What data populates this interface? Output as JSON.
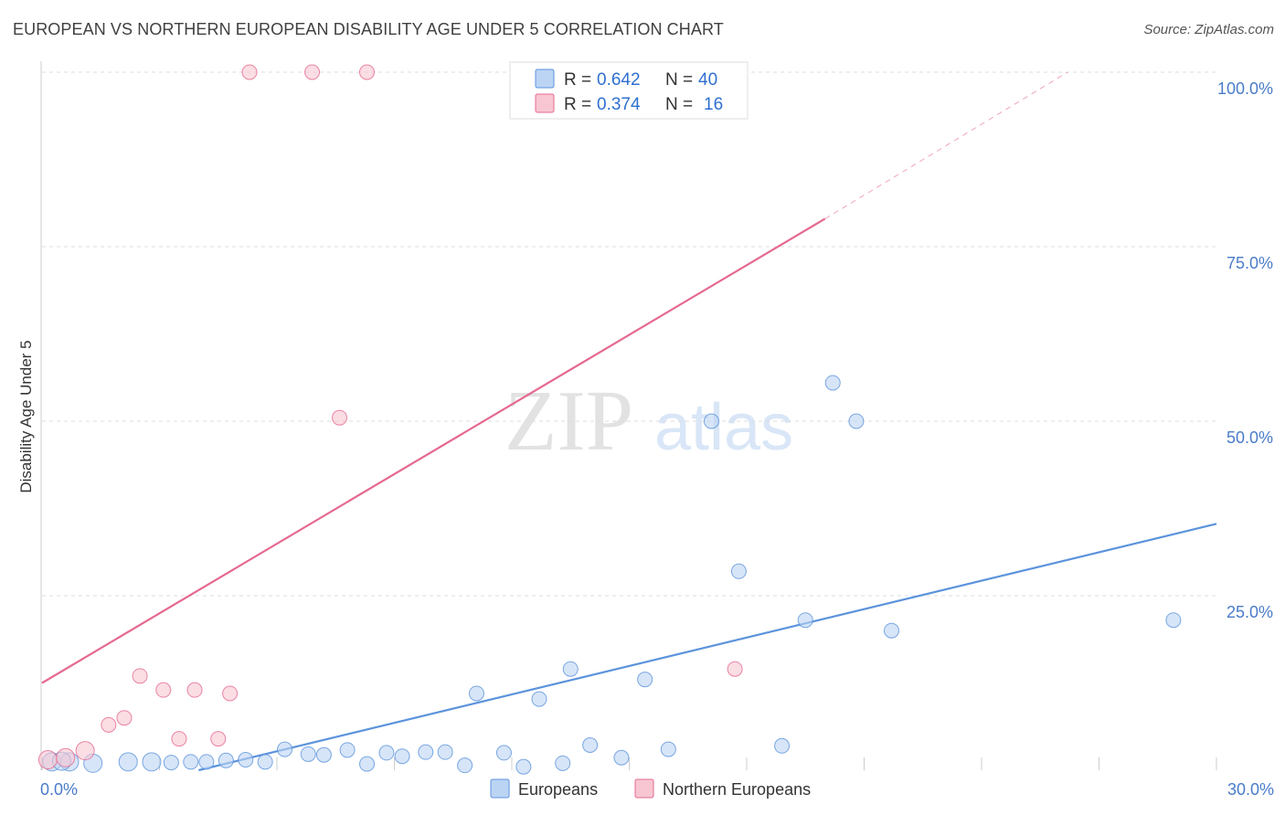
{
  "header": {
    "title": "EUROPEAN VS NORTHERN EUROPEAN DISABILITY AGE UNDER 5 CORRELATION CHART",
    "source": "Source: ZipAtlas.com"
  },
  "watermark": {
    "zip": "ZIP",
    "atlas": "atlas"
  },
  "legend": {
    "rows": [
      {
        "r_label": "R = ",
        "r_value": "0.642",
        "n_label": "N = ",
        "n_value": "40",
        "color": "#a9c8f0"
      },
      {
        "r_label": "R = ",
        "r_value": "0.374",
        "n_label": "N = ",
        "n_value": "16",
        "color": "#f8bccb"
      }
    ]
  },
  "chart_data": {
    "type": "scatter",
    "title": "EUROPEAN VS NORTHERN EUROPEAN DISABILITY AGE UNDER 5 CORRELATION CHART",
    "xlabel": "",
    "ylabel": "Disability Age Under 5",
    "xlim": [
      0,
      30
    ],
    "ylim": [
      0,
      100
    ],
    "x_tick_labels": [
      "0.0%",
      "30.0%"
    ],
    "y_ticks": [
      25,
      50,
      75,
      100
    ],
    "y_tick_labels": [
      "25.0%",
      "50.0%",
      "75.0%",
      "100.0%"
    ],
    "grid": true,
    "legend_position": "bottom",
    "series": [
      {
        "name": "Europeans",
        "color": "#5b93dc",
        "fill": "#bcd4f4",
        "r": 0.642,
        "n": 40,
        "points": [
          [
            0.25,
            1.2
          ],
          [
            0.7,
            1.2
          ],
          [
            1.3,
            1.0
          ],
          [
            2.2,
            1.2
          ],
          [
            2.8,
            1.2
          ],
          [
            3.3,
            1.1
          ],
          [
            3.8,
            1.2
          ],
          [
            4.2,
            1.2
          ],
          [
            4.7,
            1.4
          ],
          [
            5.2,
            1.5
          ],
          [
            5.7,
            1.2
          ],
          [
            6.2,
            3.0
          ],
          [
            6.8,
            2.3
          ],
          [
            7.2,
            2.2
          ],
          [
            7.8,
            2.9
          ],
          [
            8.3,
            0.9
          ],
          [
            8.8,
            2.5
          ],
          [
            9.2,
            2.0
          ],
          [
            9.8,
            2.6
          ],
          [
            10.3,
            2.6
          ],
          [
            10.8,
            0.7
          ],
          [
            11.1,
            11.0
          ],
          [
            11.8,
            2.5
          ],
          [
            12.3,
            0.5
          ],
          [
            12.7,
            10.2
          ],
          [
            13.3,
            1.0
          ],
          [
            13.5,
            14.5
          ],
          [
            14.0,
            3.6
          ],
          [
            14.8,
            1.8
          ],
          [
            15.4,
            13.0
          ],
          [
            16.0,
            3.0
          ],
          [
            17.1,
            50.0
          ],
          [
            17.8,
            28.5
          ],
          [
            18.9,
            3.5
          ],
          [
            19.5,
            21.5
          ],
          [
            20.2,
            55.5
          ],
          [
            20.8,
            50.0
          ],
          [
            21.7,
            20.0
          ],
          [
            28.9,
            21.5
          ],
          [
            0.5,
            1.3
          ]
        ],
        "trend": {
          "x": [
            4.0,
            30.0
          ],
          "y": [
            0.0,
            35.3
          ]
        }
      },
      {
        "name": "Northern Europeans",
        "color": "#e5698f",
        "fill": "#f8c6d2",
        "r": 0.374,
        "n": 16,
        "points": [
          [
            0.15,
            1.5
          ],
          [
            1.1,
            2.8
          ],
          [
            1.7,
            6.5
          ],
          [
            2.1,
            7.5
          ],
          [
            2.5,
            13.5
          ],
          [
            3.1,
            11.5
          ],
          [
            3.5,
            4.5
          ],
          [
            3.9,
            11.5
          ],
          [
            4.5,
            4.5
          ],
          [
            4.8,
            11.0
          ],
          [
            5.3,
            100.0
          ],
          [
            6.9,
            100.0
          ],
          [
            7.6,
            50.5
          ],
          [
            8.3,
            100.0
          ],
          [
            17.7,
            14.5
          ],
          [
            0.6,
            1.8
          ]
        ],
        "trend": {
          "x": [
            0.0,
            20.0
          ],
          "y": [
            12.5,
            79.0
          ]
        },
        "trend_extension": {
          "x": [
            20.0,
            26.2
          ],
          "y": [
            79.0,
            100.0
          ]
        }
      }
    ]
  }
}
